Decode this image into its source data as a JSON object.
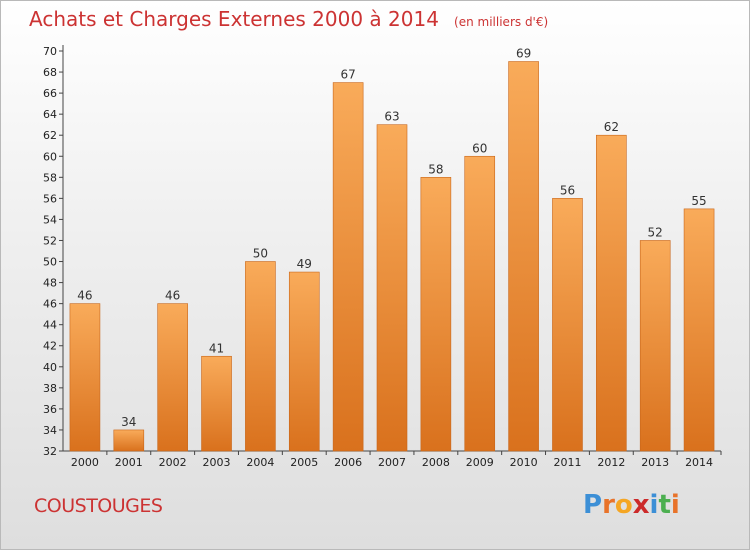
{
  "title": "Achats et Charges Externes 2000 à 2014",
  "unit": "(en milliers d'€)",
  "commune": "COUSTOUGES",
  "logo": {
    "letters": [
      "P",
      "r",
      "o",
      "x",
      "i",
      "t",
      "i"
    ],
    "colors": [
      "#3c8fd6",
      "#e8732a",
      "#f5a623",
      "#cc2a2a",
      "#3c8fd6",
      "#4caf50",
      "#e8732a"
    ]
  },
  "colors": {
    "bar_light": "#f9ab5a",
    "bar_dark": "#d9711d",
    "title": "#cc3333"
  },
  "chart_data": {
    "type": "bar",
    "categories": [
      "2000",
      "2001",
      "2002",
      "2003",
      "2004",
      "2005",
      "2006",
      "2007",
      "2008",
      "2009",
      "2010",
      "2011",
      "2012",
      "2013",
      "2014"
    ],
    "values": [
      46,
      34,
      46,
      41,
      50,
      49,
      67,
      63,
      58,
      60,
      69,
      56,
      62,
      52,
      55
    ],
    "ylim": [
      32,
      70
    ],
    "yticks": [
      32,
      34,
      36,
      38,
      40,
      42,
      44,
      46,
      48,
      50,
      52,
      54,
      56,
      58,
      60,
      62,
      64,
      66,
      68,
      70
    ],
    "grid": false,
    "title": "Achats et Charges Externes 2000 à 2014",
    "xlabel": "",
    "ylabel": ""
  }
}
